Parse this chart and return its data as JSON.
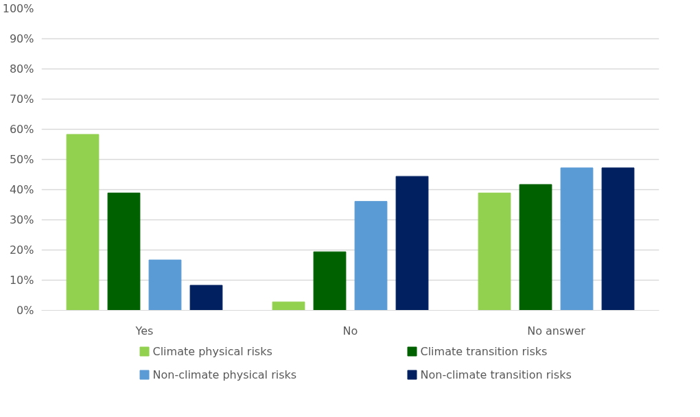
{
  "chart_data": {
    "type": "bar",
    "categories": [
      "Yes",
      "No",
      "No answer"
    ],
    "series": [
      {
        "name": "Climate physical risks",
        "color": "#92d050",
        "values": [
          58.3,
          2.8,
          38.9
        ]
      },
      {
        "name": "Climate transition risks",
        "color": "#006100",
        "values": [
          38.9,
          19.4,
          41.7
        ]
      },
      {
        "name": "Non-climate physical risks",
        "color": "#5b9bd5",
        "values": [
          16.7,
          36.1,
          47.2
        ]
      },
      {
        "name": "Non-climate transition risks",
        "color": "#002060",
        "values": [
          8.3,
          44.4,
          47.2
        ]
      }
    ],
    "ylim": [
      0,
      100
    ],
    "yticks": [
      {
        "value": 0,
        "label": "0%"
      },
      {
        "value": 10,
        "label": "10%"
      },
      {
        "value": 20,
        "label": "20%"
      },
      {
        "value": 30,
        "label": "30%"
      },
      {
        "value": 40,
        "label": "40%"
      },
      {
        "value": 50,
        "label": "50%"
      },
      {
        "value": 60,
        "label": "60%"
      },
      {
        "value": 70,
        "label": "70%"
      },
      {
        "value": 80,
        "label": "80%"
      },
      {
        "value": 90,
        "label": "90%"
      },
      {
        "value": 100,
        "label": "100%"
      }
    ],
    "grid": "y",
    "legend": "bottom"
  }
}
